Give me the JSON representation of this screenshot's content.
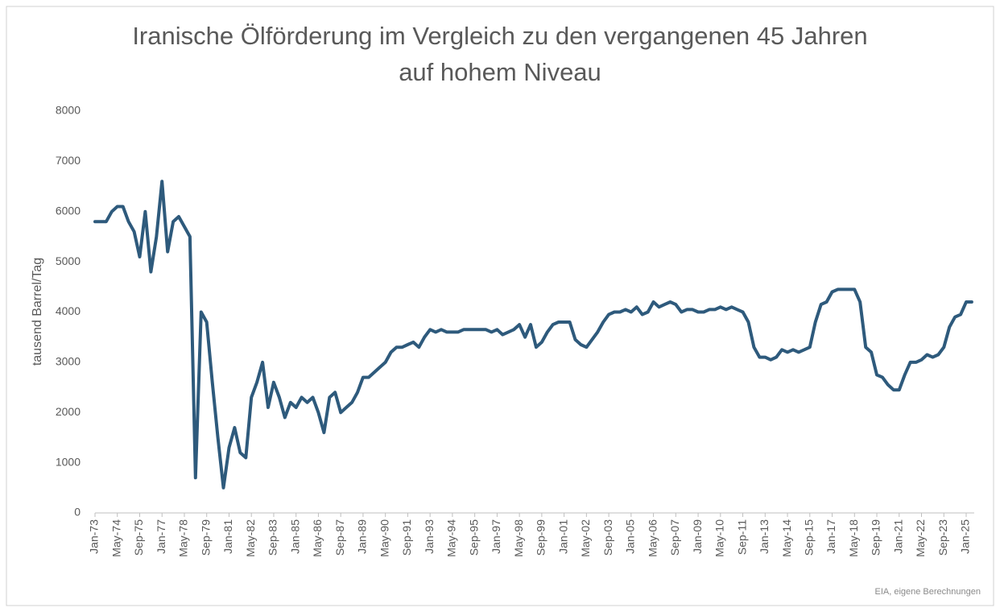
{
  "chart_data": {
    "type": "line",
    "title": [
      "Iranische Ölförderung im Vergleich zu den vergangenen 45 Jahren",
      "auf hohem Niveau"
    ],
    "y_label": "tausend Barrel/Tag",
    "source": "EIA, eigene Berechnungen",
    "categories": [
      "Jan-73",
      null,
      null,
      null,
      "May-74",
      null,
      null,
      null,
      "Sep-75",
      null,
      null,
      null,
      "Jan-77",
      null,
      null,
      null,
      "May-78",
      null,
      null,
      null,
      "Sep-79",
      null,
      null,
      null,
      "Jan-81",
      null,
      null,
      null,
      "May-82",
      null,
      null,
      null,
      "Sep-83",
      null,
      null,
      null,
      "Jan-85",
      null,
      null,
      null,
      "May-86",
      null,
      null,
      null,
      "Sep-87",
      null,
      null,
      null,
      "Jan-89",
      null,
      null,
      null,
      "May-90",
      null,
      null,
      null,
      "Sep-91",
      null,
      null,
      null,
      "Jan-93",
      null,
      null,
      null,
      "May-94",
      null,
      null,
      null,
      "Sep-95",
      null,
      null,
      null,
      "Jan-97",
      null,
      null,
      null,
      "May-98",
      null,
      null,
      null,
      "Sep-99",
      null,
      null,
      null,
      "Jan-01",
      null,
      null,
      null,
      "May-02",
      null,
      null,
      null,
      "Sep-03",
      null,
      null,
      null,
      "Jan-05",
      null,
      null,
      null,
      "May-06",
      null,
      null,
      null,
      "Sep-07",
      null,
      null,
      null,
      "Jan-09",
      null,
      null,
      null,
      "May-10",
      null,
      null,
      null,
      "Sep-11",
      null,
      null,
      null,
      "Jan-13",
      null,
      null,
      null,
      "May-14",
      null,
      null,
      null,
      "Sep-15",
      null,
      null,
      null,
      "Jan-17",
      null,
      null,
      null,
      "May-18",
      null,
      null,
      null,
      "Sep-19",
      null,
      null,
      null,
      "Jan-21",
      null,
      null,
      null,
      "May-22",
      null,
      null,
      null,
      "Sep-23",
      null,
      null,
      null,
      "Jan-25",
      null
    ],
    "series": [
      {
        "name": "Ölförderung",
        "color": "#2e5a7c",
        "values": [
          5800,
          5800,
          5800,
          6000,
          6100,
          6100,
          5800,
          5600,
          5100,
          6000,
          4800,
          5500,
          6600,
          5200,
          5800,
          5900,
          5700,
          5500,
          700,
          4000,
          3800,
          2600,
          1500,
          500,
          1300,
          1700,
          1200,
          1100,
          2300,
          2600,
          3000,
          2100,
          2600,
          2300,
          1900,
          2200,
          2100,
          2300,
          2200,
          2300,
          2000,
          1600,
          2300,
          2400,
          2000,
          2100,
          2200,
          2400,
          2700,
          2700,
          2800,
          2900,
          3000,
          3200,
          3300,
          3300,
          3350,
          3400,
          3300,
          3500,
          3650,
          3600,
          3650,
          3600,
          3600,
          3600,
          3650,
          3650,
          3650,
          3650,
          3650,
          3600,
          3650,
          3550,
          3600,
          3650,
          3750,
          3500,
          3750,
          3300,
          3400,
          3600,
          3750,
          3800,
          3800,
          3800,
          3450,
          3350,
          3300,
          3450,
          3600,
          3800,
          3950,
          4000,
          4000,
          4050,
          4000,
          4100,
          3950,
          4000,
          4200,
          4100,
          4150,
          4200,
          4150,
          4000,
          4050,
          4050,
          4000,
          4000,
          4050,
          4050,
          4100,
          4050,
          4100,
          4050,
          4000,
          3800,
          3300,
          3100,
          3100,
          3050,
          3100,
          3250,
          3200,
          3250,
          3200,
          3250,
          3300,
          3800,
          4150,
          4200,
          4400,
          4450,
          4450,
          4450,
          4450,
          4200,
          3300,
          3200,
          2750,
          2700,
          2550,
          2450,
          2450,
          2750,
          3000,
          3000,
          3050,
          3150,
          3100,
          3150,
          3300,
          3700,
          3900,
          3950,
          4200,
          4200
        ]
      }
    ],
    "ylim": [
      0,
      8000
    ],
    "yticks": [
      0,
      1000,
      2000,
      3000,
      4000,
      5000,
      6000,
      7000,
      8000
    ],
    "grid": false
  }
}
